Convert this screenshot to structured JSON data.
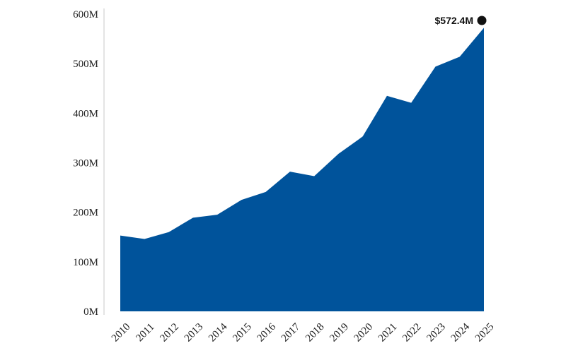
{
  "chart_data": {
    "type": "area",
    "title": "",
    "xlabel": "",
    "ylabel": "",
    "x": [
      "2010",
      "2011",
      "2012",
      "2013",
      "2014",
      "2015",
      "2016",
      "2017",
      "2018",
      "2019",
      "2020",
      "2021",
      "2022",
      "2023",
      "2024",
      "2025"
    ],
    "series": [
      {
        "values": [
          153,
          146,
          160,
          189,
          195,
          225,
          241,
          282,
          273,
          318,
          353,
          435,
          421,
          494,
          514,
          572.4
        ]
      }
    ],
    "ylim": [
      0,
      600
    ],
    "y_ticks": [
      0,
      100,
      200,
      300,
      400,
      500,
      600
    ],
    "y_tick_labels": [
      "0M",
      "100M",
      "200M",
      "300M",
      "400M",
      "500M",
      "600M"
    ],
    "end_label": "$572.4M",
    "grid": false,
    "legend": "none",
    "colors": {
      "area": "#00539b",
      "marker": "#111111",
      "axis": "#c8c8c8"
    }
  }
}
